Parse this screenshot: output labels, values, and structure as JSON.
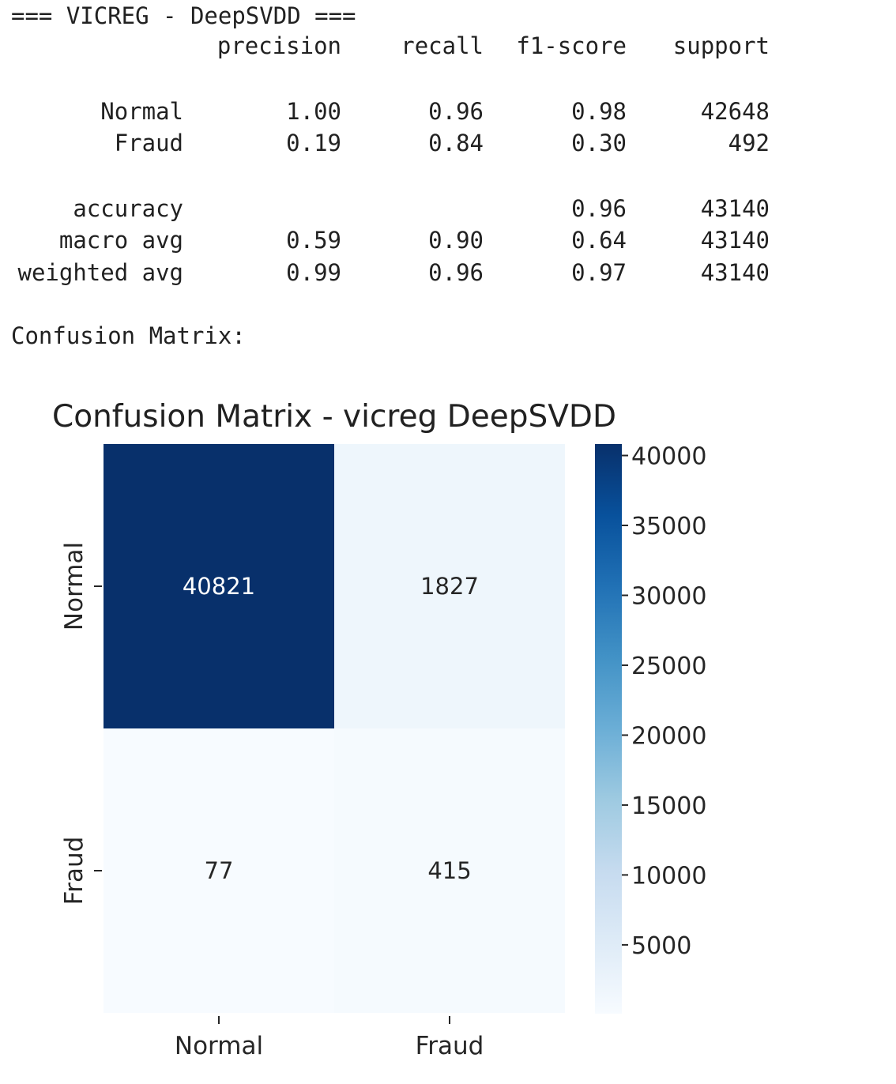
{
  "report": {
    "header": "=== VICREG - DeepSVDD ===",
    "columns": [
      "precision",
      "recall",
      "f1-score",
      "support"
    ],
    "class_rows": [
      {
        "label": "Normal",
        "precision": "1.00",
        "recall": "0.96",
        "f1": "0.98",
        "support": "42648"
      },
      {
        "label": "Fraud",
        "precision": "0.19",
        "recall": "0.84",
        "f1": "0.30",
        "support": "492"
      }
    ],
    "summary_rows": [
      {
        "label": "accuracy",
        "precision": "",
        "recall": "",
        "f1": "0.96",
        "support": "43140"
      },
      {
        "label": "macro avg",
        "precision": "0.59",
        "recall": "0.90",
        "f1": "0.64",
        "support": "43140"
      },
      {
        "label": "weighted avg",
        "precision": "0.99",
        "recall": "0.96",
        "f1": "0.97",
        "support": "43140"
      }
    ],
    "cm_caption": "Confusion Matrix:"
  },
  "chart_data": {
    "type": "heatmap",
    "title": "Confusion Matrix - vicreg DeepSVDD",
    "x_categories": [
      "Normal",
      "Fraud"
    ],
    "y_categories": [
      "Normal",
      "Fraud"
    ],
    "values": [
      [
        40821,
        1827
      ],
      [
        77,
        415
      ]
    ],
    "xlabel": "",
    "ylabel": "",
    "colormap": "Blues",
    "colorbar": {
      "ticks": [
        "5000",
        "10000",
        "15000",
        "20000",
        "25000",
        "30000",
        "35000",
        "40000"
      ],
      "range": [
        77,
        40821
      ]
    },
    "colors": {
      "low": "#f7fbff",
      "high": "#08306b",
      "text_dark": "#262626",
      "text_light": "#ffffff"
    }
  }
}
